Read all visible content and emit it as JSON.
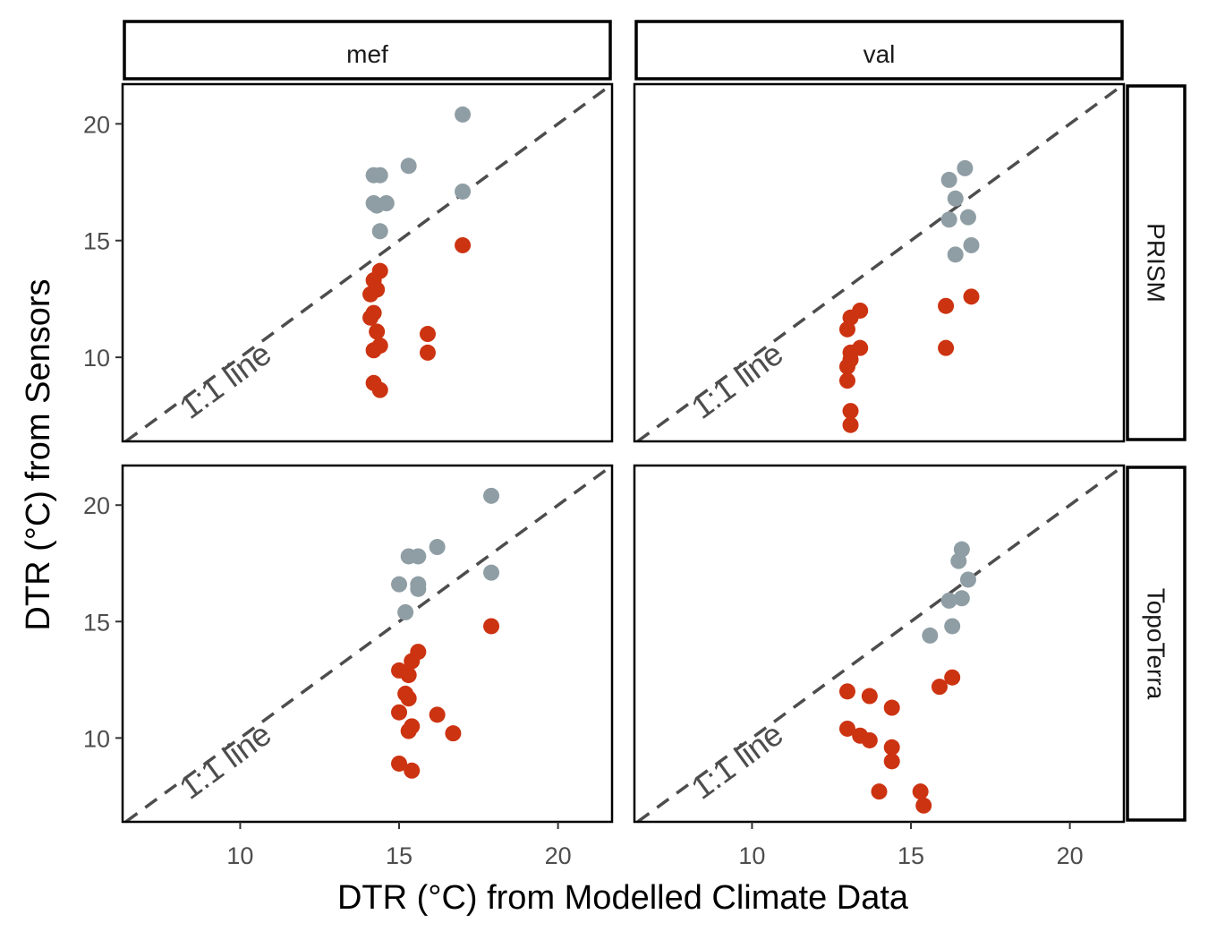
{
  "chart_data": {
    "type": "scatter",
    "xlabel": "DTR (°C) from Modelled Climate Data",
    "ylabel": "DTR (°C) from Sensors",
    "xlim": [
      6.3,
      21.7
    ],
    "ylim": [
      6.4,
      21.7
    ],
    "x_ticks": [
      10,
      15,
      20
    ],
    "y_ticks": [
      10,
      15,
      20
    ],
    "grid": false,
    "legend": "none",
    "reference_line": {
      "type": "1:1",
      "label": "1:1 line",
      "color": "#4d4d4d",
      "style": "dashed"
    },
    "colors": {
      "above_line": "#8f9ea4",
      "below_line": "#cc3311",
      "panel_border": "#000000"
    },
    "facet_columns": [
      "mef",
      "val"
    ],
    "facet_rows": [
      "PRISM",
      "TopoTerra"
    ],
    "panels": [
      {
        "col": "mef",
        "row": "PRISM",
        "gray": [
          [
            17.0,
            20.4
          ],
          [
            14.2,
            17.8
          ],
          [
            14.4,
            17.8
          ],
          [
            15.3,
            18.2
          ],
          [
            14.2,
            16.6
          ],
          [
            14.3,
            16.5
          ],
          [
            14.6,
            16.6
          ],
          [
            17.0,
            17.1
          ],
          [
            14.4,
            15.4
          ]
        ],
        "red": [
          [
            17.0,
            14.8
          ],
          [
            14.4,
            13.7
          ],
          [
            14.2,
            13.3
          ],
          [
            14.3,
            12.9
          ],
          [
            14.1,
            12.7
          ],
          [
            14.2,
            11.9
          ],
          [
            14.1,
            11.7
          ],
          [
            14.3,
            11.1
          ],
          [
            15.9,
            11.0
          ],
          [
            15.9,
            10.2
          ],
          [
            14.2,
            10.3
          ],
          [
            14.4,
            10.5
          ],
          [
            14.2,
            8.9
          ],
          [
            14.4,
            8.6
          ]
        ]
      },
      {
        "col": "val",
        "row": "PRISM",
        "gray": [
          [
            16.7,
            18.1
          ],
          [
            16.2,
            17.6
          ],
          [
            16.4,
            16.8
          ],
          [
            16.2,
            15.9
          ],
          [
            16.8,
            16.0
          ],
          [
            16.9,
            14.8
          ],
          [
            16.4,
            14.4
          ]
        ],
        "red": [
          [
            16.9,
            12.6
          ],
          [
            16.1,
            12.2
          ],
          [
            13.4,
            12.0
          ],
          [
            13.1,
            11.7
          ],
          [
            13.0,
            11.2
          ],
          [
            16.1,
            10.4
          ],
          [
            13.4,
            10.4
          ],
          [
            13.1,
            10.2
          ],
          [
            13.1,
            9.9
          ],
          [
            13.0,
            9.6
          ],
          [
            13.0,
            9.0
          ],
          [
            13.1,
            7.7
          ],
          [
            13.1,
            7.1
          ]
        ]
      },
      {
        "col": "mef",
        "row": "TopoTerra",
        "gray": [
          [
            17.9,
            20.4
          ],
          [
            16.2,
            18.2
          ],
          [
            15.3,
            17.8
          ],
          [
            15.6,
            17.8
          ],
          [
            15.0,
            16.6
          ],
          [
            15.6,
            16.6
          ],
          [
            15.6,
            16.4
          ],
          [
            17.9,
            17.1
          ],
          [
            15.2,
            15.4
          ]
        ],
        "red": [
          [
            17.9,
            14.8
          ],
          [
            15.6,
            13.7
          ],
          [
            15.4,
            13.3
          ],
          [
            15.0,
            12.9
          ],
          [
            15.3,
            12.7
          ],
          [
            15.2,
            11.9
          ],
          [
            15.3,
            11.7
          ],
          [
            15.0,
            11.1
          ],
          [
            16.2,
            11.0
          ],
          [
            16.7,
            10.2
          ],
          [
            15.3,
            10.3
          ],
          [
            15.4,
            10.5
          ],
          [
            15.0,
            8.9
          ],
          [
            15.4,
            8.6
          ]
        ]
      },
      {
        "col": "val",
        "row": "TopoTerra",
        "gray": [
          [
            16.6,
            18.1
          ],
          [
            16.5,
            17.6
          ],
          [
            16.8,
            16.8
          ],
          [
            16.2,
            15.9
          ],
          [
            16.6,
            16.0
          ],
          [
            16.3,
            14.8
          ],
          [
            15.6,
            14.4
          ]
        ],
        "red": [
          [
            16.3,
            12.6
          ],
          [
            15.9,
            12.2
          ],
          [
            13.0,
            12.0
          ],
          [
            13.7,
            11.8
          ],
          [
            14.4,
            11.3
          ],
          [
            13.0,
            10.4
          ],
          [
            13.4,
            10.1
          ],
          [
            13.7,
            9.9
          ],
          [
            14.4,
            9.6
          ],
          [
            14.4,
            9.0
          ],
          [
            14.0,
            7.7
          ],
          [
            15.3,
            7.7
          ],
          [
            15.4,
            7.1
          ]
        ]
      }
    ]
  }
}
